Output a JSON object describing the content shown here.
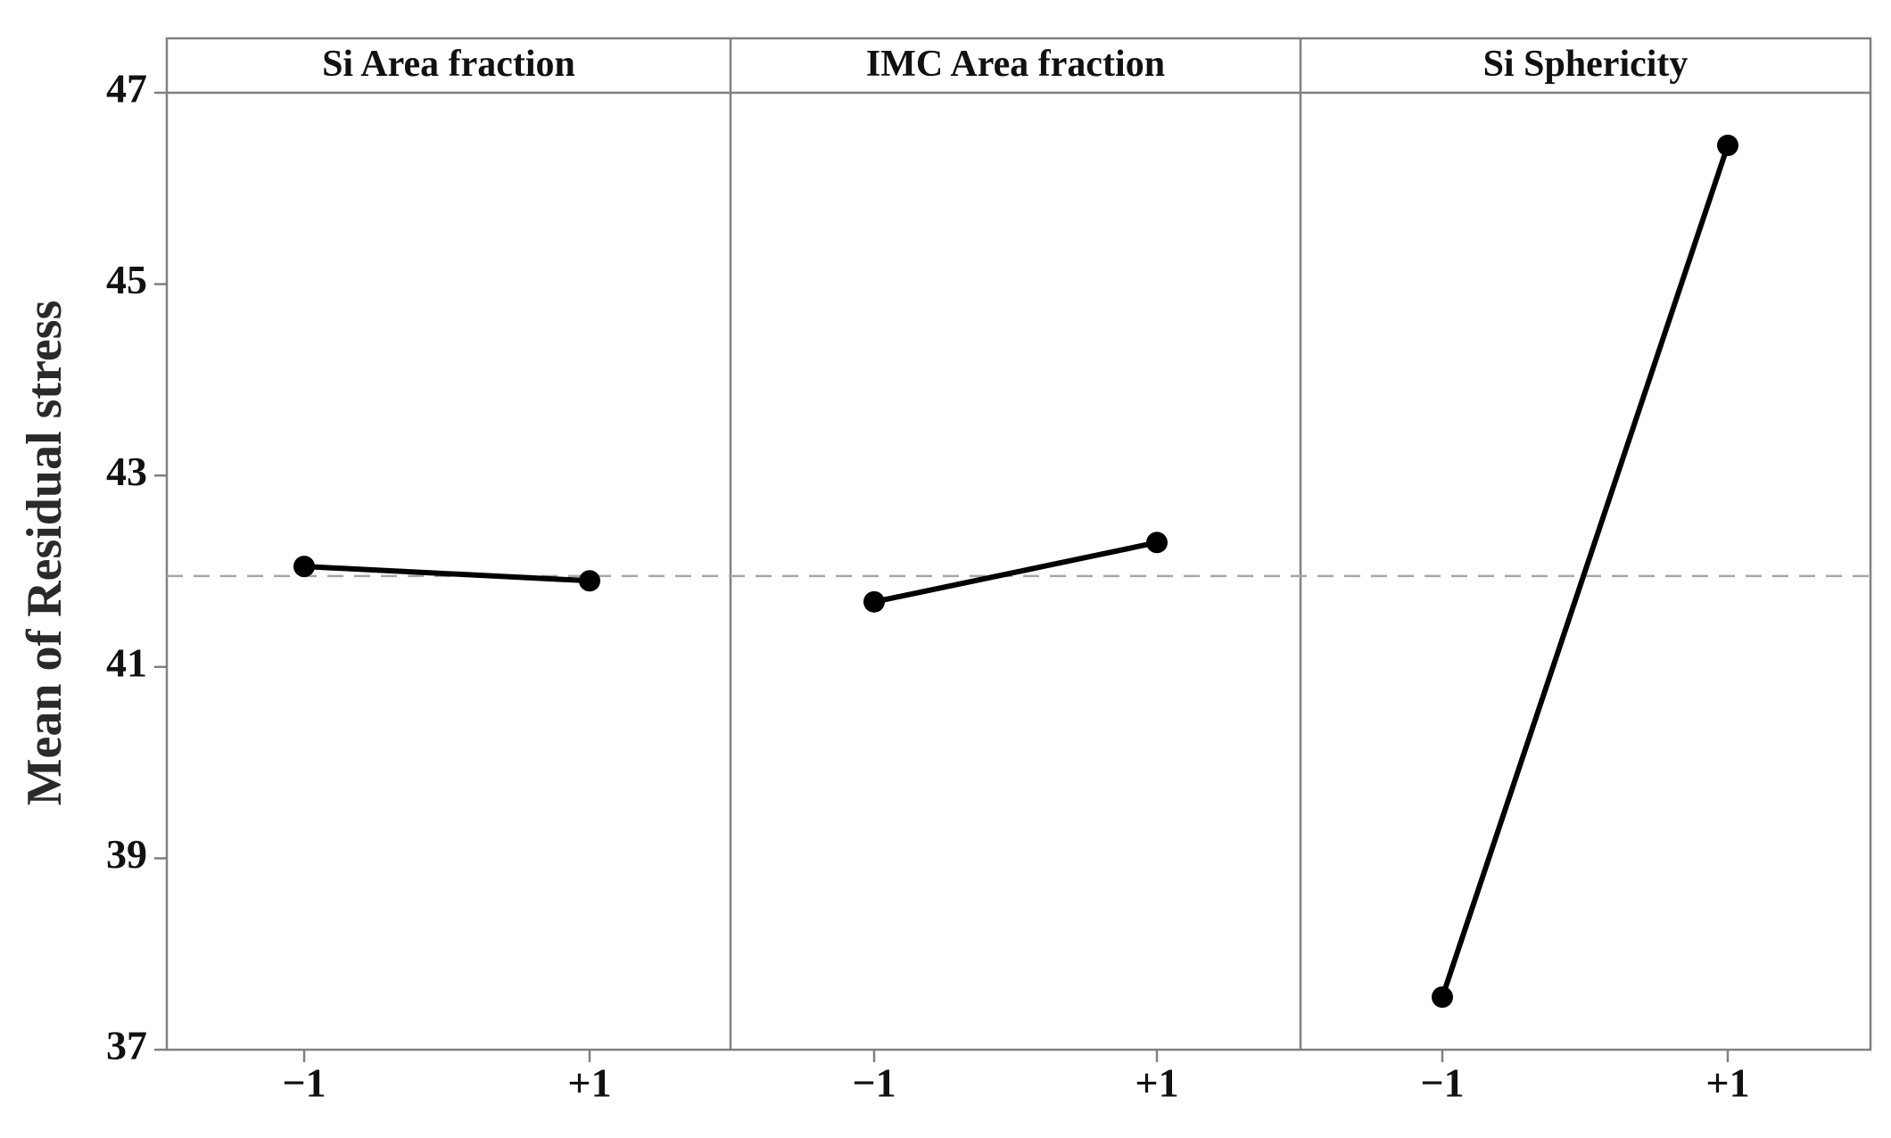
{
  "chart_data": {
    "type": "line",
    "ylabel": "Mean of Residual stress",
    "ylim": [
      37,
      47
    ],
    "y_ticks": [
      "37",
      "39",
      "41",
      "43",
      "45",
      "47"
    ],
    "x_tick_labels": [
      "−1",
      "+1"
    ],
    "reference_line": 41.95,
    "panels": [
      {
        "title": "Si Area fraction",
        "x": [
          "−1",
          "+1"
        ],
        "values": [
          42.05,
          41.9
        ]
      },
      {
        "title": "IMC Area fraction",
        "x": [
          "−1",
          "+1"
        ],
        "values": [
          41.68,
          42.3
        ]
      },
      {
        "title": "Si Sphericity",
        "x": [
          "−1",
          "+1"
        ],
        "values": [
          37.55,
          46.45
        ]
      }
    ],
    "colors": {
      "line": "#000000",
      "marker": "#000000",
      "frame": "#808080",
      "reference": "#a6a6a6"
    },
    "grid": false
  }
}
